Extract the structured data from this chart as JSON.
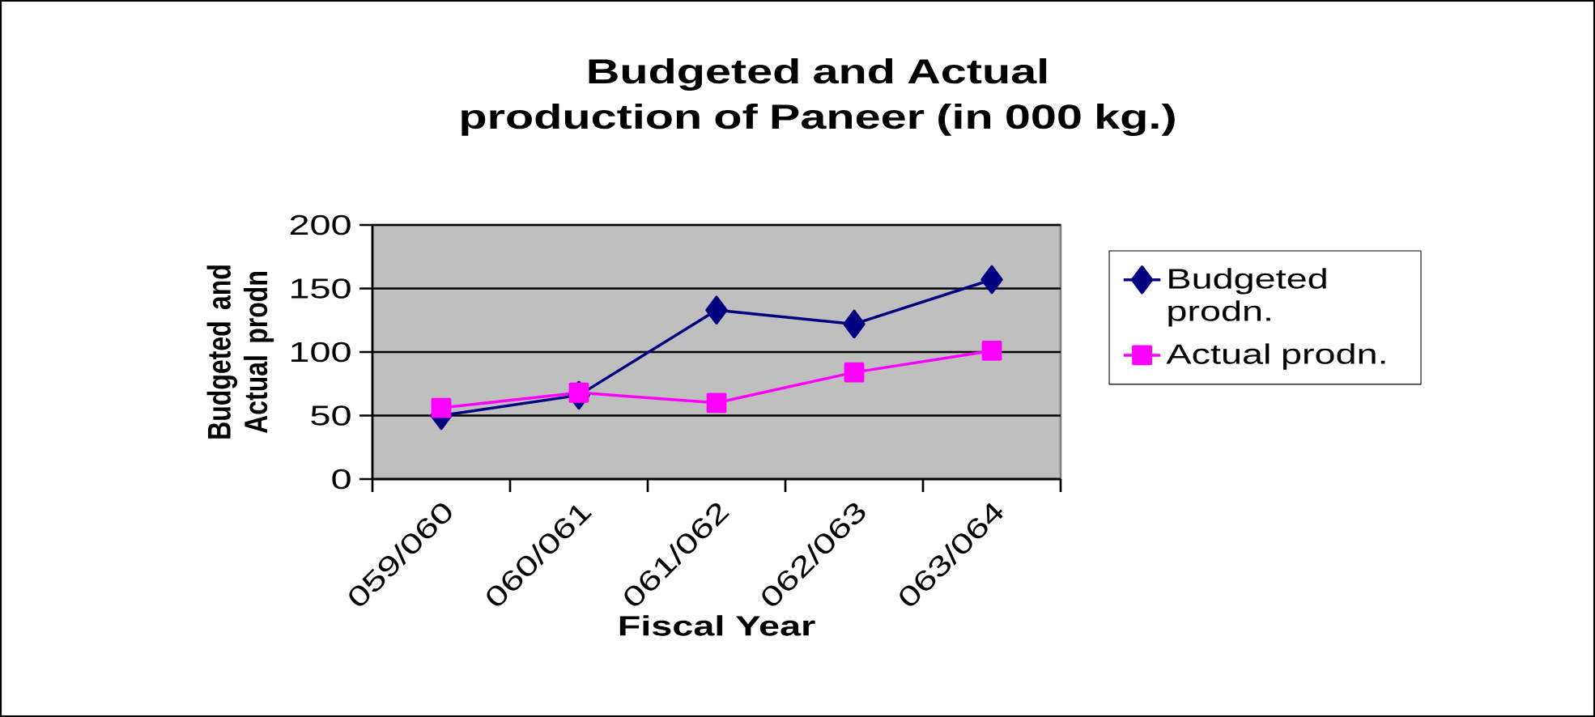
{
  "chart_data": {
    "type": "line",
    "title": "Budgeted and Actual production of Paneer (in 000 kg.)",
    "xlabel": "Fiscal Year",
    "ylabel": "Budgeted and Actual prodn",
    "categories": [
      "059/060",
      "060/061",
      "061/062",
      "062/063",
      "063/064"
    ],
    "series": [
      {
        "name": "Budgeted prodn.",
        "color": "#000080",
        "marker": "diamond",
        "values": [
          50,
          66,
          133,
          122,
          157
        ]
      },
      {
        "name": "Actual prodn.",
        "color": "#ff00ff",
        "marker": "square",
        "values": [
          56,
          68,
          60,
          84,
          101
        ]
      }
    ],
    "ylim": [
      0,
      200
    ],
    "yticks": [
      0,
      50,
      100,
      150,
      200
    ],
    "grid": "y",
    "legend": "right",
    "line_style": "solid"
  }
}
